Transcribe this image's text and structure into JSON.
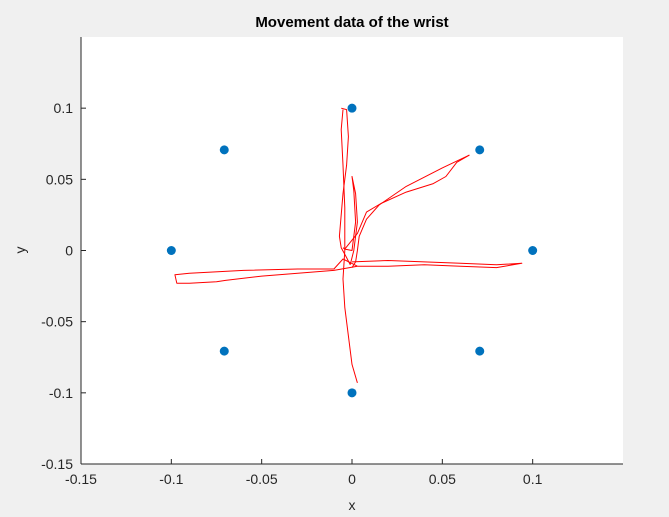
{
  "chart_data": {
    "type": "scatter",
    "title": "Movement data of the wrist",
    "xlabel": "x",
    "ylabel": "y",
    "xlim": [
      -0.15,
      0.15
    ],
    "ylim": [
      -0.15,
      0.15
    ],
    "xticks": [
      -0.15,
      -0.1,
      -0.05,
      0,
      0.05,
      0.1
    ],
    "yticks": [
      -0.15,
      -0.1,
      -0.05,
      0,
      0.05,
      0.1
    ],
    "xtick_labels": [
      "-0.15",
      "-0.1",
      "-0.05",
      "0",
      "0.05",
      "0.1"
    ],
    "ytick_labels": [
      "-0.15",
      "-0.1",
      "-0.05",
      "0",
      "0.05",
      "0.1"
    ],
    "grid": false,
    "series": [
      {
        "kind": "points",
        "color": "#0072bd",
        "points": [
          [
            0,
            0.1
          ],
          [
            0.0707,
            0.0707
          ],
          [
            0.1,
            0
          ],
          [
            0.0707,
            -0.0707
          ],
          [
            0,
            -0.1
          ],
          [
            -0.0707,
            -0.0707
          ],
          [
            -0.1,
            0
          ],
          [
            -0.0707,
            0.0707
          ]
        ]
      },
      {
        "kind": "trajectory",
        "color": "#ff0000",
        "paths": [
          [
            [
              -0.005,
              0.099
            ],
            [
              -0.006,
              0.085
            ],
            [
              -0.005,
              0.06
            ],
            [
              -0.004,
              0.03
            ],
            [
              -0.004,
              0.0
            ],
            [
              -0.005,
              -0.02
            ],
            [
              -0.004,
              -0.04
            ],
            [
              -0.002,
              -0.06
            ],
            [
              0.0,
              -0.08
            ],
            [
              0.003,
              -0.093
            ]
          ],
          [
            [
              -0.006,
              0.1
            ],
            [
              -0.003,
              0.099
            ],
            [
              -0.002,
              0.08
            ],
            [
              -0.003,
              0.06
            ],
            [
              -0.005,
              0.04
            ],
            [
              -0.007,
              0.01
            ],
            [
              -0.006,
              0.002
            ],
            [
              -0.003,
              -0.005
            ],
            [
              -0.001,
              -0.01
            ]
          ],
          [
            [
              -0.001,
              -0.01
            ],
            [
              0.001,
              0.0
            ],
            [
              0.003,
              0.02
            ],
            [
              0.002,
              0.04
            ],
            [
              0.0,
              0.052
            ],
            [
              0.001,
              0.042
            ],
            [
              0.002,
              0.02
            ],
            [
              0.0,
              0.0
            ],
            [
              -0.004,
              0.001
            ],
            [
              -0.005,
              0.002
            ]
          ],
          [
            [
              -0.004,
              0.001
            ],
            [
              0.003,
              0.012
            ],
            [
              0.008,
              0.027
            ],
            [
              0.016,
              0.033
            ],
            [
              0.03,
              0.041
            ],
            [
              0.045,
              0.047
            ],
            [
              0.052,
              0.052
            ],
            [
              0.058,
              0.062
            ],
            [
              0.065,
              0.067
            ]
          ],
          [
            [
              0.065,
              0.067
            ],
            [
              0.05,
              0.058
            ],
            [
              0.03,
              0.045
            ],
            [
              0.015,
              0.032
            ],
            [
              0.008,
              0.022
            ],
            [
              0.004,
              0.01
            ],
            [
              0.003,
              0.0
            ],
            [
              0.002,
              -0.008
            ],
            [
              0.0,
              -0.012
            ]
          ],
          [
            [
              0.0,
              -0.008
            ],
            [
              0.02,
              -0.007
            ],
            [
              0.04,
              -0.008
            ],
            [
              0.06,
              -0.009
            ],
            [
              0.08,
              -0.01
            ],
            [
              0.094,
              -0.009
            ],
            [
              0.08,
              -0.012
            ],
            [
              0.06,
              -0.011
            ],
            [
              0.04,
              -0.01
            ],
            [
              0.02,
              -0.011
            ],
            [
              0.003,
              -0.011
            ]
          ],
          [
            [
              0.003,
              -0.011
            ],
            [
              -0.005,
              -0.006
            ],
            [
              -0.01,
              -0.013
            ],
            [
              -0.03,
              -0.013
            ],
            [
              -0.06,
              -0.014
            ],
            [
              -0.09,
              -0.016
            ],
            [
              -0.098,
              -0.017
            ],
            [
              -0.097,
              -0.023
            ],
            [
              -0.09,
              -0.023
            ],
            [
              -0.075,
              -0.022
            ],
            [
              -0.07,
              -0.021
            ],
            [
              -0.05,
              -0.018
            ],
            [
              -0.03,
              -0.016
            ],
            [
              -0.01,
              -0.014
            ],
            [
              0.003,
              -0.011
            ]
          ]
        ]
      }
    ]
  }
}
